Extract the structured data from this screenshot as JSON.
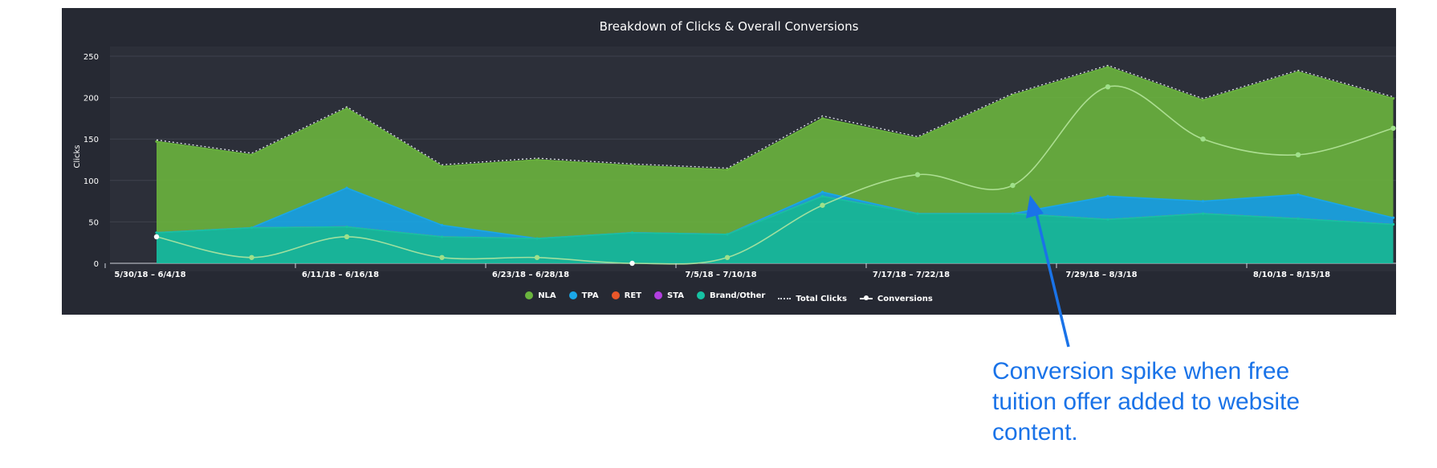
{
  "chart_data": {
    "type": "area",
    "title": "Breakdown of Clicks & Overall Conversions",
    "ylabel": "Clicks",
    "xlabel": "",
    "ylim": [
      0,
      250
    ],
    "yticks": [
      0,
      50,
      100,
      150,
      200,
      250
    ],
    "x_tick_labels": [
      "5/30/18 – 6/4/18",
      "6/11/18 – 6/16/18",
      "6/23/18 – 6/28/18",
      "7/5/18 – 7/10/18",
      "7/17/18 – 7/22/18",
      "7/29/18 – 8/3/18",
      "8/10/18 – 8/15/18"
    ],
    "grid": true,
    "stacked": true,
    "series": [
      {
        "name": "NLA",
        "color": "#6ab43e",
        "values": [
          110,
          88,
          96,
          71,
          95,
          81,
          78,
          89,
          91,
          143,
          156,
          122,
          148,
          144
        ]
      },
      {
        "name": "TPA",
        "color": "#1aa7e8",
        "values": [
          0,
          0,
          47,
          14,
          0,
          0,
          0,
          5,
          0,
          0,
          28,
          15,
          29,
          8
        ]
      },
      {
        "name": "RET",
        "color": "#e8572a",
        "values": [
          0,
          0,
          0,
          0,
          0,
          0,
          0,
          0,
          0,
          0,
          0,
          0,
          0,
          0
        ]
      },
      {
        "name": "STA",
        "color": "#b23fe0",
        "values": [
          0,
          0,
          0,
          0,
          0,
          0,
          0,
          0,
          0,
          0,
          0,
          0,
          0,
          0
        ]
      },
      {
        "name": "Brand/Other",
        "color": "#16c2a3",
        "values": [
          37,
          43,
          44,
          32,
          30,
          37,
          35,
          81,
          60,
          60,
          53,
          60,
          54,
          47
        ]
      }
    ],
    "total_clicks": {
      "name": "Total Clicks",
      "values": [
        147,
        131,
        187,
        117,
        125,
        118,
        113,
        176,
        151,
        203,
        237,
        197,
        231,
        199
      ]
    },
    "conversions": {
      "name": "Conversions",
      "values": [
        32,
        7,
        32,
        7,
        7,
        0,
        7,
        70,
        107,
        94,
        213,
        150,
        131,
        163
      ]
    },
    "legend_position": "bottom"
  },
  "annotation": {
    "text": "Conversion spike when free tuition offer added to website content.",
    "color": "#1a73e8"
  }
}
